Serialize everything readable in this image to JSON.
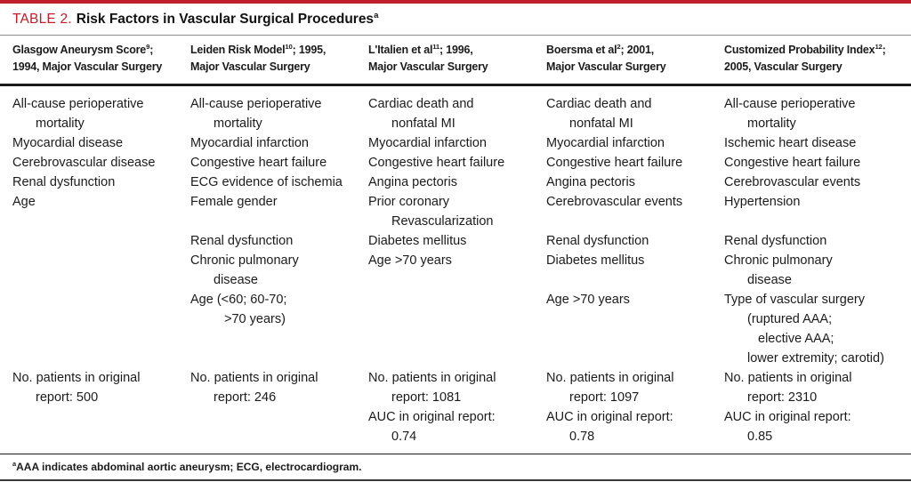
{
  "page": {
    "title_label": "TABLE 2.",
    "title_text": "Risk Factors in Vascular Surgical Procedures",
    "title_superscript": "a",
    "footnote_superscript": "a",
    "footnote_text": "AAA indicates abdominal aortic aneurysm; ECG, electrocardiogram."
  },
  "colors": {
    "accent_red": "#c01f2c",
    "rule_dark": "#1a1a1a",
    "rule_gray": "#8d8d8d",
    "text": "#1b1b1b"
  },
  "table": {
    "columns": [
      {
        "header": {
          "line1_pre": "Glasgow Aneurysm Score",
          "line1_sup": "9",
          "line1_post": ";",
          "line2": "1994, Major Vascular Surgery"
        },
        "lines": [
          {
            "text": "All-cause perioperative"
          },
          {
            "text": "mortality",
            "indent": 1
          },
          {
            "text": "Myocardial disease"
          },
          {
            "text": "Cerebrovascular disease"
          },
          {
            "text": "Renal dysfunction"
          },
          {
            "text": "Age"
          },
          {
            "text": ""
          },
          {
            "text": ""
          },
          {
            "text": ""
          },
          {
            "text": ""
          },
          {
            "text": ""
          },
          {
            "text": ""
          },
          {
            "text": ""
          },
          {
            "text": ""
          },
          {
            "text": "No. patients in original"
          },
          {
            "text": "report: 500",
            "indent": 1
          },
          {
            "text": ""
          },
          {
            "text": ""
          }
        ]
      },
      {
        "header": {
          "line1_pre": "Leiden Risk Model",
          "line1_sup": "10",
          "line1_post": "; 1995,",
          "line2": "Major Vascular Surgery"
        },
        "lines": [
          {
            "text": "All-cause perioperative"
          },
          {
            "text": "mortality",
            "indent": 1
          },
          {
            "text": "Myocardial infarction"
          },
          {
            "text": "Congestive heart failure"
          },
          {
            "text": "ECG evidence of ischemia"
          },
          {
            "text": "Female gender"
          },
          {
            "text": ""
          },
          {
            "text": "Renal dysfunction"
          },
          {
            "text": "Chronic pulmonary"
          },
          {
            "text": "disease",
            "indent": 1
          },
          {
            "text": "Age (<60; 60-70;"
          },
          {
            "text": ">70 years)",
            "indent": 2
          },
          {
            "text": ""
          },
          {
            "text": ""
          },
          {
            "text": "No. patients in original"
          },
          {
            "text": "report: 246",
            "indent": 1
          },
          {
            "text": ""
          },
          {
            "text": ""
          }
        ]
      },
      {
        "header": {
          "line1_pre": "L'Italien et al",
          "line1_sup": "11",
          "line1_post": "; 1996,",
          "line2": "Major Vascular Surgery"
        },
        "lines": [
          {
            "text": "Cardiac death and"
          },
          {
            "text": "nonfatal MI",
            "indent": 1
          },
          {
            "text": "Myocardial infarction"
          },
          {
            "text": "Congestive heart failure"
          },
          {
            "text": "Angina pectoris"
          },
          {
            "text": "Prior coronary"
          },
          {
            "text": "Revascularization",
            "indent": 1
          },
          {
            "text": "Diabetes mellitus"
          },
          {
            "text": "Age >70 years"
          },
          {
            "text": ""
          },
          {
            "text": ""
          },
          {
            "text": ""
          },
          {
            "text": ""
          },
          {
            "text": ""
          },
          {
            "text": "No. patients in original"
          },
          {
            "text": "report: 1081",
            "indent": 1
          },
          {
            "text": "AUC in original report:"
          },
          {
            "text": "0.74",
            "indent": 1
          }
        ]
      },
      {
        "header": {
          "line1_pre": "Boersma et al",
          "line1_sup": "2",
          "line1_post": "; 2001,",
          "line2": "Major Vascular Surgery"
        },
        "lines": [
          {
            "text": "Cardiac death and"
          },
          {
            "text": "nonfatal MI",
            "indent": 1
          },
          {
            "text": "Myocardial infarction"
          },
          {
            "text": "Congestive heart failure"
          },
          {
            "text": "Angina pectoris"
          },
          {
            "text": "Cerebrovascular events"
          },
          {
            "text": ""
          },
          {
            "text": "Renal dysfunction"
          },
          {
            "text": "Diabetes mellitus"
          },
          {
            "text": ""
          },
          {
            "text": "Age >70 years"
          },
          {
            "text": ""
          },
          {
            "text": ""
          },
          {
            "text": ""
          },
          {
            "text": "No. patients in original"
          },
          {
            "text": "report: 1097",
            "indent": 1
          },
          {
            "text": "AUC in original report:"
          },
          {
            "text": "0.78",
            "indent": 1
          }
        ]
      },
      {
        "header": {
          "line1_pre": "Customized Probability Index",
          "line1_sup": "12",
          "line1_post": ";",
          "line2": "2005, Vascular Surgery"
        },
        "lines": [
          {
            "text": "All-cause perioperative"
          },
          {
            "text": "mortality",
            "indent": 1
          },
          {
            "text": "Ischemic heart disease"
          },
          {
            "text": "Congestive heart failure"
          },
          {
            "text": "Cerebrovascular events"
          },
          {
            "text": "Hypertension"
          },
          {
            "text": ""
          },
          {
            "text": "Renal dysfunction"
          },
          {
            "text": "Chronic pulmonary"
          },
          {
            "text": "disease",
            "indent": 1
          },
          {
            "text": "Type of vascular surgery"
          },
          {
            "text": "(ruptured AAA;",
            "indent": 1
          },
          {
            "text": "elective AAA;",
            "indent": 2
          },
          {
            "text": "lower extremity; carotid)",
            "indent": 1
          },
          {
            "text": "No. patients in original"
          },
          {
            "text": "report: 2310",
            "indent": 1
          },
          {
            "text": "AUC in original report:"
          },
          {
            "text": "0.85",
            "indent": 1
          }
        ]
      }
    ]
  }
}
